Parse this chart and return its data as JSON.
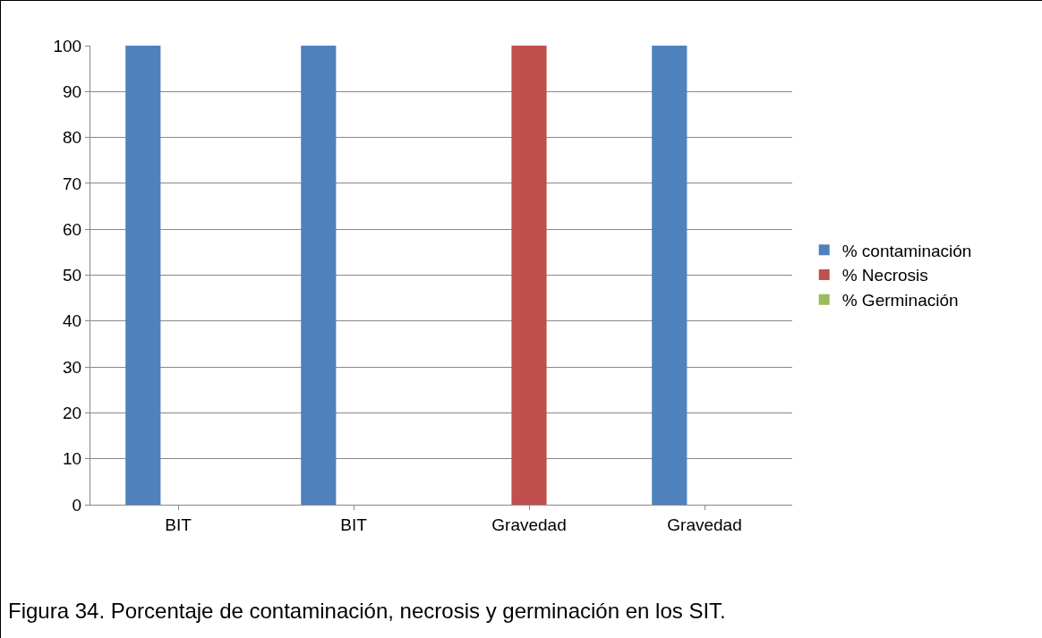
{
  "chart_data": {
    "type": "bar",
    "categories": [
      "BIT",
      "BIT",
      "Gravedad",
      "Gravedad"
    ],
    "series": [
      {
        "name": "% contaminación",
        "color": "#4f81bd",
        "values": [
          100,
          100,
          0,
          100
        ]
      },
      {
        "name": "% Necrosis",
        "color": "#c0504d",
        "values": [
          0,
          0,
          100,
          0
        ]
      },
      {
        "name": "% Germinación",
        "color": "#9bbb59",
        "values": [
          0,
          0,
          0,
          0
        ]
      }
    ],
    "ylim": [
      0,
      100
    ],
    "yticks": [
      0,
      10,
      20,
      30,
      40,
      50,
      60,
      70,
      80,
      90,
      100
    ],
    "grid": "y",
    "legend": "right",
    "annotations": [
      "Figura 34. Porcentaje de contaminación, necrosis y germinación en los SIT."
    ]
  }
}
